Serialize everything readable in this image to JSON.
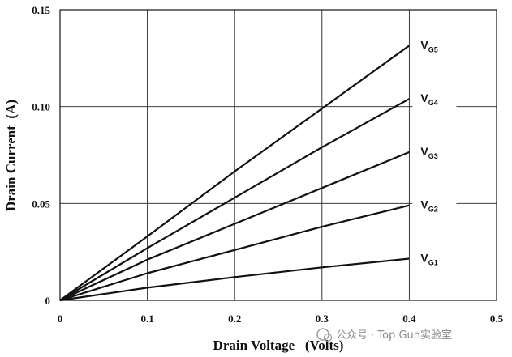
{
  "chart_data": {
    "type": "line",
    "xlabel": "Drain Voltage   (Volts)",
    "ylabel": "Drain Current  (A)",
    "xlim": [
      0,
      0.5
    ],
    "ylim": [
      0,
      0.15
    ],
    "x_ticks": [
      "0",
      "0.1",
      "0.2",
      "0.3",
      "0.4",
      "0.5"
    ],
    "y_ticks": [
      "0",
      "0.05",
      "0.10",
      "0.15"
    ],
    "grid": true,
    "series": [
      {
        "name": "V",
        "subscript": "G1",
        "x": [
          0,
          0.1,
          0.2,
          0.3,
          0.4
        ],
        "y": [
          0,
          0.0065,
          0.012,
          0.017,
          0.0215
        ]
      },
      {
        "name": "V",
        "subscript": "G2",
        "x": [
          0,
          0.1,
          0.2,
          0.3,
          0.4
        ],
        "y": [
          0,
          0.014,
          0.026,
          0.038,
          0.049
        ]
      },
      {
        "name": "V",
        "subscript": "G3",
        "x": [
          0,
          0.1,
          0.2,
          0.3,
          0.4
        ],
        "y": [
          0,
          0.021,
          0.0395,
          0.058,
          0.0765
        ]
      },
      {
        "name": "V",
        "subscript": "G4",
        "x": [
          0,
          0.1,
          0.2,
          0.3,
          0.4
        ],
        "y": [
          0,
          0.027,
          0.053,
          0.079,
          0.104
        ]
      },
      {
        "name": "V",
        "subscript": "G5",
        "x": [
          0,
          0.1,
          0.2,
          0.3,
          0.4
        ],
        "y": [
          0,
          0.033,
          0.0665,
          0.099,
          0.1315
        ]
      }
    ]
  },
  "watermark": {
    "text": "公众号 · Top Gun实验室"
  }
}
